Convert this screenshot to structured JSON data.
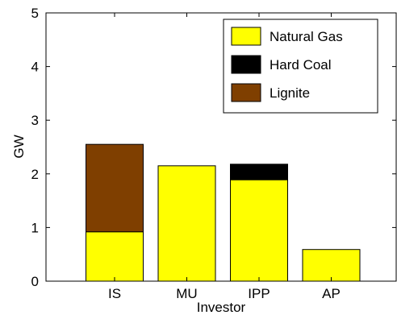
{
  "chart_data": {
    "type": "bar",
    "stacked": true,
    "categories": [
      "IS",
      "MU",
      "IPP",
      "AP"
    ],
    "series": [
      {
        "name": "Natural Gas",
        "color": "#ffff00",
        "values": [
          0.92,
          2.15,
          1.89,
          0.59
        ]
      },
      {
        "name": "Hard Coal",
        "color": "#000000",
        "values": [
          0,
          0,
          0.29,
          0
        ]
      },
      {
        "name": "Lignite",
        "color": "#7f3f00",
        "values": [
          1.63,
          0,
          0,
          0
        ]
      }
    ],
    "title": "",
    "xlabel": "Investor",
    "ylabel": "GW",
    "ylim": [
      0,
      5
    ],
    "yticks": [
      "0",
      "1",
      "2",
      "3",
      "4",
      "5"
    ],
    "grid": false,
    "legend_position": "top-right"
  }
}
